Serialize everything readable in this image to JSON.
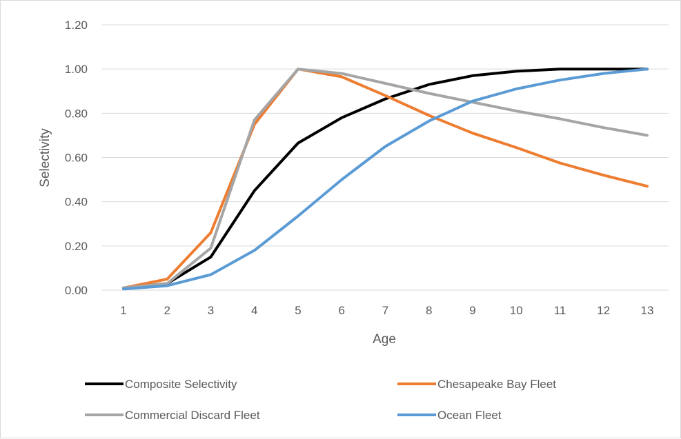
{
  "chart_data": {
    "type": "line",
    "title": "",
    "xlabel": "Age",
    "ylabel": "Selectivity",
    "x": [
      1,
      2,
      3,
      4,
      5,
      6,
      7,
      8,
      9,
      10,
      11,
      12,
      13
    ],
    "x_tick_labels": [
      "1",
      "2",
      "3",
      "4",
      "5",
      "6",
      "7",
      "8",
      "9",
      "10",
      "11",
      "12",
      "13"
    ],
    "ylim": [
      0,
      1.2
    ],
    "y_ticks": [
      0,
      0.2,
      0.4,
      0.6,
      0.8,
      1.0,
      1.2
    ],
    "y_tick_labels": [
      "0.00",
      "0.20",
      "0.40",
      "0.60",
      "0.80",
      "1.00",
      "1.20"
    ],
    "grid": "horizontal",
    "legend_position": "bottom",
    "series": [
      {
        "name": "Composite Selectivity",
        "color": "#000000",
        "values": [
          0.01,
          0.03,
          0.15,
          0.45,
          0.665,
          0.78,
          0.865,
          0.93,
          0.97,
          0.99,
          1.0,
          1.0,
          1.0
        ]
      },
      {
        "name": "Chesapeake Bay Fleet",
        "color": "#ed7d31",
        "values": [
          0.01,
          0.05,
          0.26,
          0.75,
          1.0,
          0.965,
          0.88,
          0.79,
          0.71,
          0.645,
          0.575,
          0.52,
          0.47
        ]
      },
      {
        "name": "Commercial Discard Fleet",
        "color": "#a5a5a5",
        "values": [
          0.01,
          0.03,
          0.19,
          0.77,
          1.0,
          0.98,
          0.935,
          0.89,
          0.85,
          0.81,
          0.775,
          0.735,
          0.7
        ]
      },
      {
        "name": "Ocean Fleet",
        "color": "#5b9bd5",
        "values": [
          0.005,
          0.02,
          0.07,
          0.18,
          0.335,
          0.5,
          0.65,
          0.765,
          0.855,
          0.91,
          0.95,
          0.98,
          1.0
        ]
      }
    ]
  }
}
